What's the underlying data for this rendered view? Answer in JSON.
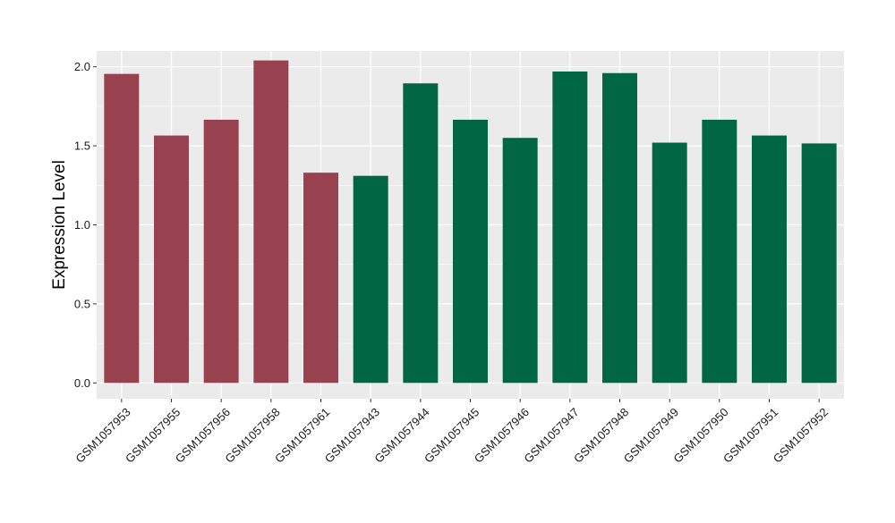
{
  "chart_data": {
    "type": "bar",
    "ylabel": "Expression Level",
    "xlabel": "",
    "ylim": [
      -0.1,
      2.1
    ],
    "yticks": [
      0.0,
      0.5,
      1.0,
      1.5,
      2.0
    ],
    "ytick_labels": [
      "0.0",
      "0.5",
      "1.0",
      "1.5",
      "2.0"
    ],
    "grid": true,
    "categories": [
      "GSM1057953",
      "GSM1057955",
      "GSM1057956",
      "GSM1057958",
      "GSM1057961",
      "GSM1057943",
      "GSM1057944",
      "GSM1057945",
      "GSM1057946",
      "GSM1057947",
      "GSM1057948",
      "GSM1057949",
      "GSM1057950",
      "GSM1057951",
      "GSM1057952"
    ],
    "values": [
      1.955,
      1.565,
      1.665,
      2.04,
      1.33,
      1.31,
      1.895,
      1.665,
      1.55,
      1.97,
      1.96,
      1.52,
      1.665,
      1.565,
      1.515
    ],
    "bar_colors": [
      "#98414F",
      "#98414F",
      "#98414F",
      "#98414F",
      "#98414F",
      "#006644",
      "#006644",
      "#006644",
      "#006644",
      "#006644",
      "#006644",
      "#006644",
      "#006644",
      "#006644",
      "#006644"
    ],
    "panel_background": "#EBEBEB",
    "grid_color": "#FFFFFF"
  }
}
